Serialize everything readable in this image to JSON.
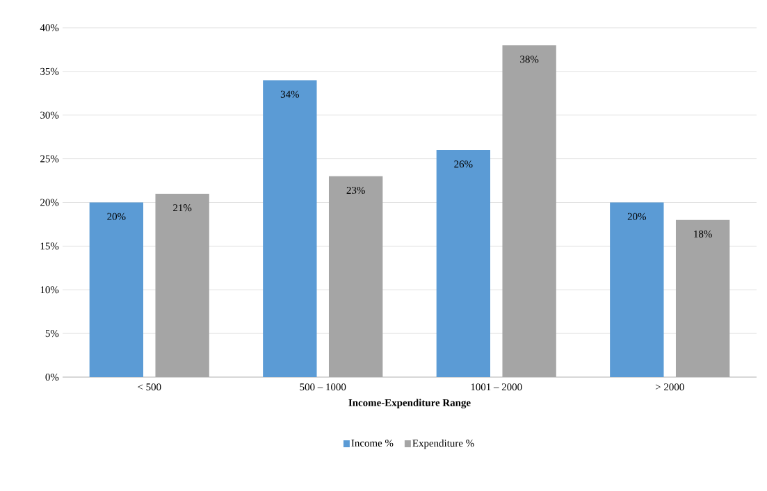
{
  "chart_data": {
    "type": "bar",
    "xlabel": "Income-Expenditure Range",
    "categories": [
      "< 500",
      "500 – 1000",
      "1001 – 2000",
      "> 2000"
    ],
    "series": [
      {
        "name": "Income %",
        "color": "#5b9bd5",
        "values": [
          20,
          34,
          26,
          20
        ],
        "value_labels": [
          "20%",
          "34%",
          "26%",
          "20%"
        ]
      },
      {
        "name": "Expenditure %",
        "color": "#a5a5a5",
        "values": [
          21,
          23,
          38,
          18
        ],
        "value_labels": [
          "21%",
          "23%",
          "38%",
          "18%"
        ]
      }
    ],
    "ylim": [
      0,
      40
    ],
    "yticks": [
      {
        "value": 0,
        "label": "0%"
      },
      {
        "value": 5,
        "label": "5%"
      },
      {
        "value": 10,
        "label": "10%"
      },
      {
        "value": 15,
        "label": "15%"
      },
      {
        "value": 20,
        "label": "20%"
      },
      {
        "value": 25,
        "label": "25%"
      },
      {
        "value": 30,
        "label": "30%"
      },
      {
        "value": 35,
        "label": "35%"
      },
      {
        "value": 40,
        "label": "40%"
      }
    ],
    "grid": "y",
    "legend": "bottom"
  }
}
